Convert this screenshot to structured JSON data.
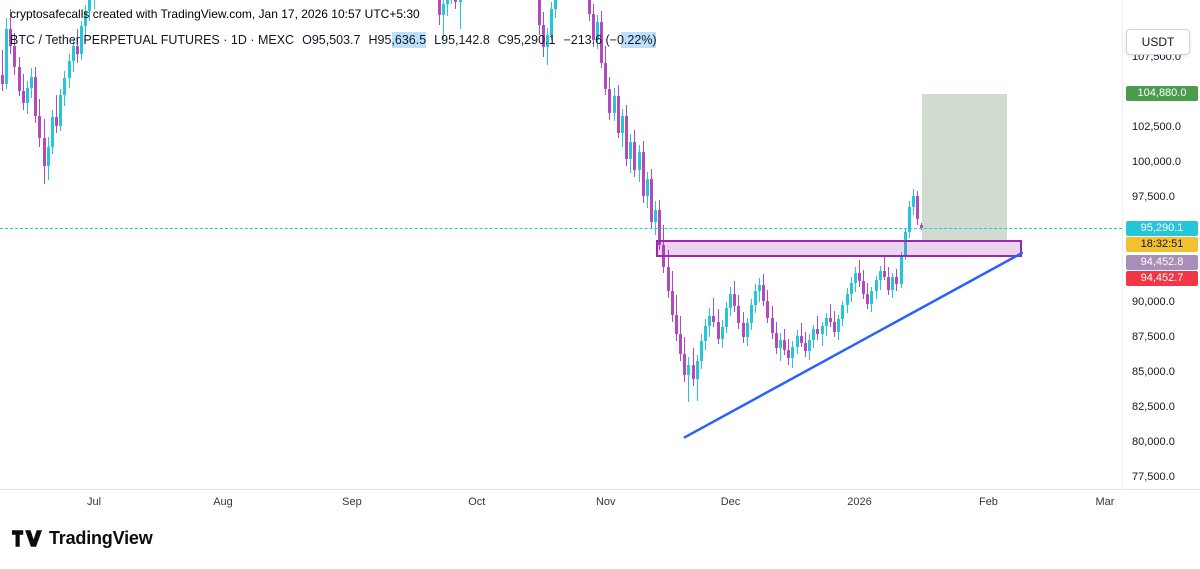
{
  "header": {
    "attribution": "cryptosafecalls created with TradingView.com, Jan 17, 2026 10:57 UTC+5:30",
    "currency_button": "USDT"
  },
  "legend": {
    "symbol_title": "BTC / Tether PERPETUAL FUTURES · 1D · MEXC",
    "values": [
      "O95,503.7",
      "H95,636.5",
      "L95,142.8",
      "C95,290.1",
      "−213.6 (−0.22%)"
    ],
    "value_color": "#00bcd4"
  },
  "footer": {
    "brand": "TradingView"
  },
  "chart_data": {
    "type": "candlestick",
    "title": "BTC / Tether PERPETUAL FUTURES 1D MEXC",
    "interval": "1D",
    "exchange": "MEXC",
    "ohlc_current": {
      "open": 95503.7,
      "high": 95636.5,
      "low": 95142.8,
      "close": 95290.1,
      "change": -213.6,
      "change_pct": -0.22
    },
    "layout": {
      "grid": false,
      "price_top": 111570,
      "price_bottom": 76660,
      "day_min": -22.6,
      "day_max": 247.1,
      "x_anchor_note": "day 0 = Jul 1, 2025"
    },
    "x_axis_months": [
      {
        "label": "Jul",
        "d": 0
      },
      {
        "label": "Aug",
        "d": 31
      },
      {
        "label": "Sep",
        "d": 62
      },
      {
        "label": "Oct",
        "d": 92
      },
      {
        "label": "Nov",
        "d": 123
      },
      {
        "label": "Dec",
        "d": 153
      },
      {
        "label": "2026",
        "d": 184
      },
      {
        "label": "Feb",
        "d": 215
      },
      {
        "label": "Mar",
        "d": 243
      }
    ],
    "price_ticks": [
      107500,
      102500,
      100000,
      97500,
      90000,
      87500,
      85000,
      82500,
      80000,
      77500
    ],
    "colors": {
      "up": "#26c6da",
      "down": "#b348bf",
      "trendline": "#2962ff",
      "zone_fill": "rgba(156,39,176,0.20)",
      "zone_border": "#9c27b0",
      "target_fill": "rgba(90,125,85,0.28)",
      "price_line": "#26c6da"
    },
    "overlays": {
      "trendline": {
        "from": {
          "d": 142,
          "price": 80350
        },
        "to": {
          "d": 223,
          "price": 93500
        }
      },
      "resistance_zone": {
        "d_from": 135,
        "d_to": 223,
        "price_top": 94452.8,
        "price_bottom": 93200
      },
      "target_box": {
        "d_from": 199,
        "d_to": 219.5,
        "price_top": 104880.0,
        "price_bottom": 94452.8
      },
      "current_price_line": {
        "price": 95290.1
      }
    },
    "badges": {
      "target": {
        "label": "104,880.0",
        "price": 104880.0,
        "bg": "#4b9b4f",
        "fg": "#ffffff"
      },
      "last_price": {
        "label": "95,290.1",
        "price": 95290.1,
        "bg": "#26c6da",
        "fg": "#ffffff"
      },
      "countdown": {
        "label": "18:32:51",
        "bg": "#f2c12e",
        "fg": "#131722"
      },
      "zone_top": {
        "label": "94,452.8",
        "bg": "#a78fb8",
        "fg": "#ffffff"
      },
      "stop": {
        "label": "94,452.7",
        "bg": "#f23645",
        "fg": "#ffffff"
      }
    },
    "candles_columns": [
      "day_offset_from_jul1",
      "open",
      "high",
      "low",
      "close"
    ],
    "candles": [
      [
        -22,
        106200,
        108000,
        105100,
        105600
      ],
      [
        -21,
        105600,
        110300,
        105200,
        109500
      ],
      [
        -20,
        109500,
        110900,
        107700,
        108300
      ],
      [
        -19,
        108300,
        109200,
        106200,
        106800
      ],
      [
        -18,
        106800,
        107500,
        104700,
        105100
      ],
      [
        -17,
        105100,
        106300,
        103700,
        104200
      ],
      [
        -16,
        104200,
        105800,
        103400,
        105300
      ],
      [
        -15,
        105300,
        106700,
        104600,
        106100
      ],
      [
        -14,
        106100,
        106800,
        102800,
        103300
      ],
      [
        -13,
        103300,
        104500,
        101100,
        101700
      ],
      [
        -12,
        101700,
        103100,
        98400,
        99700
      ],
      [
        -11,
        99700,
        101800,
        98700,
        101100
      ],
      [
        -10,
        101100,
        103700,
        100600,
        103200
      ],
      [
        -9,
        103200,
        104800,
        102100,
        102600
      ],
      [
        -8,
        102600,
        105200,
        102200,
        104800
      ],
      [
        -7,
        104800,
        106500,
        104000,
        106000
      ],
      [
        -6,
        106000,
        107700,
        105300,
        107200
      ],
      [
        -5,
        107200,
        108800,
        106400,
        108300
      ],
      [
        -4,
        108300,
        109500,
        107100,
        107700
      ],
      [
        -3,
        107700,
        110100,
        107300,
        109700
      ],
      [
        -2,
        109700,
        111200,
        108900,
        110800
      ],
      [
        -1,
        110800,
        112300,
        110100,
        111800
      ],
      [
        0,
        111800,
        112900,
        110900,
        112400
      ],
      [
        1,
        112400,
        113400,
        111700,
        112800
      ],
      [
        2,
        112800,
        113600,
        112000,
        113100
      ],
      [
        83,
        112100,
        112700,
        109800,
        110500
      ],
      [
        84,
        110500,
        111900,
        108800,
        111300
      ],
      [
        85,
        111300,
        112400,
        110400,
        112000
      ],
      [
        86,
        112000,
        113000,
        111300,
        112600
      ],
      [
        87,
        112600,
        113200,
        110900,
        111400
      ],
      [
        88,
        111400,
        112500,
        109500,
        112100
      ],
      [
        107,
        112300,
        112800,
        109100,
        109800
      ],
      [
        108,
        109800,
        110700,
        107500,
        108200
      ],
      [
        109,
        108200,
        109600,
        106900,
        109100
      ],
      [
        110,
        109100,
        111400,
        108700,
        110900
      ],
      [
        111,
        110900,
        112500,
        110300,
        112100
      ],
      [
        119,
        112200,
        112900,
        110100,
        110600
      ],
      [
        120,
        110600,
        111300,
        108200,
        108700
      ],
      [
        121,
        108700,
        110500,
        108100,
        110000
      ],
      [
        122,
        110000,
        110800,
        106700,
        107100
      ],
      [
        123,
        107100,
        108300,
        104800,
        105200
      ],
      [
        124,
        105200,
        106100,
        103000,
        103500
      ],
      [
        125,
        103500,
        105300,
        102900,
        104700
      ],
      [
        126,
        104700,
        105500,
        101700,
        102100
      ],
      [
        127,
        102100,
        103800,
        101100,
        103300
      ],
      [
        128,
        103300,
        104100,
        99700,
        100200
      ],
      [
        129,
        100200,
        102000,
        99200,
        101400
      ],
      [
        130,
        101400,
        102300,
        98900,
        99400
      ],
      [
        131,
        99400,
        101200,
        98600,
        100700
      ],
      [
        132,
        100700,
        101500,
        97100,
        97600
      ],
      [
        133,
        97600,
        99300,
        96700,
        98800
      ],
      [
        134,
        98800,
        99500,
        95300,
        95700
      ],
      [
        135,
        95700,
        97200,
        94800,
        96600
      ],
      [
        136,
        96600,
        97300,
        93700,
        94100
      ],
      [
        137,
        94100,
        95500,
        92100,
        92500
      ],
      [
        138,
        92500,
        93700,
        90300,
        90800
      ],
      [
        139,
        90800,
        92200,
        88600,
        89100
      ],
      [
        140,
        89100,
        90500,
        87200,
        87700
      ],
      [
        141,
        87700,
        89000,
        85800,
        86300
      ],
      [
        142,
        86300,
        87500,
        84300,
        84800
      ],
      [
        143,
        84800,
        86100,
        82900,
        85500
      ],
      [
        144,
        85500,
        86700,
        84000,
        84500
      ],
      [
        145,
        84500,
        86200,
        82950,
        85800
      ],
      [
        146,
        85800,
        87700,
        85200,
        87200
      ],
      [
        147,
        87200,
        88800,
        86600,
        88300
      ],
      [
        148,
        88300,
        89600,
        87500,
        89000
      ],
      [
        149,
        89000,
        90300,
        88200,
        88600
      ],
      [
        150,
        88600,
        89500,
        87000,
        87400
      ],
      [
        151,
        87400,
        88700,
        86700,
        88200
      ],
      [
        152,
        88200,
        90000,
        87800,
        89600
      ],
      [
        153,
        89600,
        91100,
        89000,
        90600
      ],
      [
        154,
        90600,
        91500,
        89300,
        89700
      ],
      [
        155,
        89700,
        90500,
        88100,
        88500
      ],
      [
        156,
        88500,
        89300,
        87100,
        87500
      ],
      [
        157,
        87500,
        88900,
        86900,
        88500
      ],
      [
        158,
        88500,
        90200,
        88000,
        89800
      ],
      [
        159,
        89800,
        91300,
        89200,
        90800
      ],
      [
        160,
        90800,
        91700,
        90000,
        91200
      ],
      [
        161,
        91200,
        92000,
        89700,
        90100
      ],
      [
        162,
        90100,
        90900,
        88500,
        88900
      ],
      [
        163,
        88900,
        89700,
        87400,
        87800
      ],
      [
        164,
        87800,
        88600,
        86300,
        86700
      ],
      [
        165,
        86700,
        87800,
        85800,
        87300
      ],
      [
        166,
        87300,
        88100,
        86200,
        86600
      ],
      [
        167,
        86600,
        87400,
        85500,
        86000
      ],
      [
        168,
        86000,
        87200,
        85300,
        86800
      ],
      [
        169,
        86800,
        88000,
        86300,
        87600
      ],
      [
        170,
        87600,
        88500,
        86800,
        87100
      ],
      [
        171,
        87100,
        87900,
        86100,
        86500
      ],
      [
        172,
        86500,
        87700,
        85900,
        87300
      ],
      [
        173,
        87300,
        88400,
        86700,
        88100
      ],
      [
        174,
        88100,
        89000,
        87300,
        87700
      ],
      [
        175,
        87700,
        88600,
        86900,
        88300
      ],
      [
        176,
        88300,
        89200,
        87600,
        88900
      ],
      [
        177,
        88900,
        89900,
        88200,
        88600
      ],
      [
        178,
        88600,
        89400,
        87500,
        87900
      ],
      [
        179,
        87900,
        89100,
        87300,
        88800
      ],
      [
        180,
        88800,
        90100,
        88300,
        89800
      ],
      [
        181,
        89800,
        91000,
        89200,
        90600
      ],
      [
        182,
        90600,
        91800,
        90000,
        91400
      ],
      [
        183,
        91400,
        92500,
        90700,
        92100
      ],
      [
        184,
        92100,
        93000,
        91100,
        91500
      ],
      [
        185,
        91500,
        92300,
        90200,
        90600
      ],
      [
        186,
        90600,
        91400,
        89500,
        89900
      ],
      [
        187,
        89900,
        91100,
        89300,
        90800
      ],
      [
        188,
        90800,
        91900,
        90200,
        91600
      ],
      [
        189,
        91600,
        92600,
        90900,
        92200
      ],
      [
        190,
        92200,
        93300,
        91600,
        91800
      ],
      [
        191,
        91800,
        92500,
        90500,
        90900
      ],
      [
        192,
        90900,
        92100,
        90300,
        91800
      ],
      [
        193,
        91800,
        92400,
        90800,
        91300
      ],
      [
        194,
        91300,
        93600,
        91000,
        93400
      ],
      [
        195,
        93400,
        95300,
        93000,
        95000
      ],
      [
        196,
        95000,
        97200,
        94600,
        96800
      ],
      [
        197,
        96800,
        98100,
        96200,
        97600
      ],
      [
        198,
        97600,
        97900,
        95500,
        95900
      ],
      [
        199,
        95503.7,
        95636.5,
        95142.8,
        95290.1
      ]
    ]
  }
}
